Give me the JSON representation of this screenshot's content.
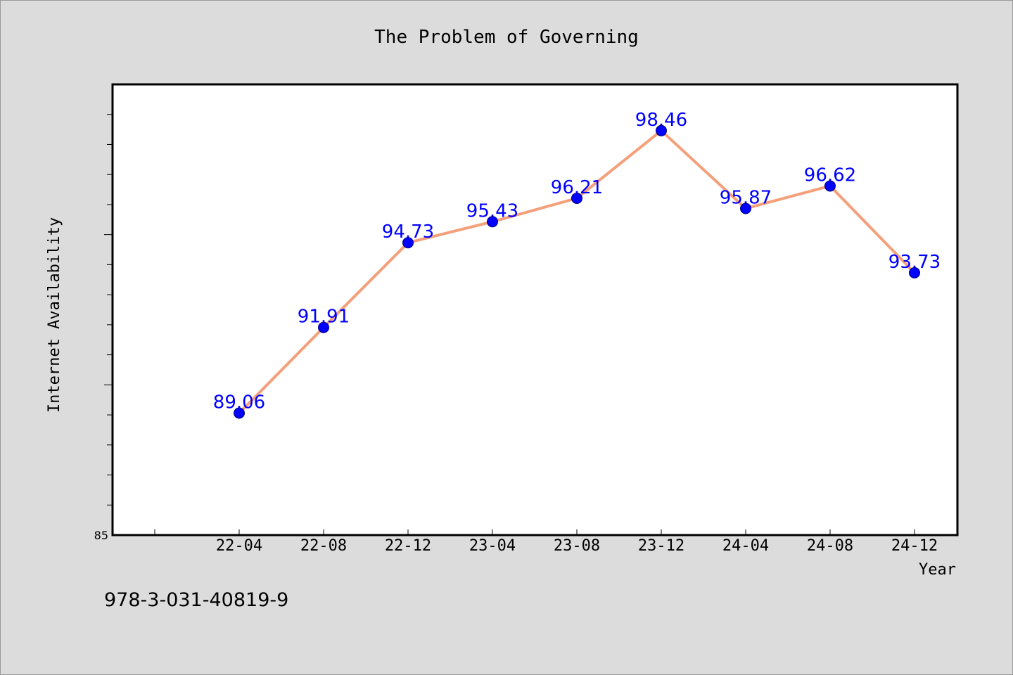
{
  "chart_data": {
    "type": "line",
    "title": "The Problem of Governing",
    "xlabel": "Year",
    "ylabel": "Internet Availability",
    "categories": [
      "22-04",
      "22-08",
      "22-12",
      "23-04",
      "23-08",
      "23-12",
      "24-04",
      "24-08",
      "24-12"
    ],
    "series": [
      {
        "values": [
          89.06,
          91.91,
          94.73,
          95.43,
          96.21,
          98.46,
          95.87,
          96.62,
          93.73
        ]
      }
    ],
    "data_labels": [
      "89.06",
      "91.91",
      "94.73",
      "95.43",
      "96.21",
      "98.46",
      "95.87",
      "96.62",
      "93.73"
    ],
    "ylim": [
      85,
      100
    ],
    "y_tick_labels": [
      "85"
    ],
    "grid": false,
    "legend": "none",
    "colors": {
      "line": "#f4a07a",
      "marker": "#0000ff",
      "data_label": "#0000ff",
      "plot_background": "#ffffff",
      "figure_background": "#dcdcdc"
    }
  },
  "footer": {
    "isbn": "978-3-031-40819-9"
  }
}
